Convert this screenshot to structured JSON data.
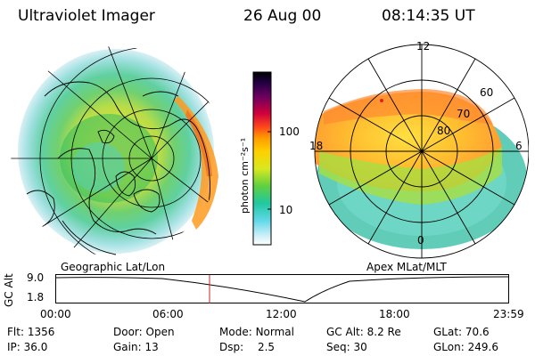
{
  "header": {
    "instrument": "Ultraviolet Imager",
    "date": "26 Aug 00",
    "time": "08:14:35 UT"
  },
  "colorbar": {
    "unit_label": "photon cm⁻²s⁻¹",
    "ticks": [
      "100",
      "10"
    ],
    "colors": [
      "#000000",
      "#1a0030",
      "#5a0050",
      "#c0004a",
      "#ff4020",
      "#ff9900",
      "#ffcc00",
      "#c8e020",
      "#40d040",
      "#20c8c0",
      "#a0e8f0",
      "#ffffff"
    ]
  },
  "geo_panel": {
    "label": "Geographic Lat/Lon"
  },
  "apex_panel": {
    "label": "Apex MLat/MLT",
    "mlt_labels": [
      "12",
      "18",
      "6",
      "0"
    ],
    "lat_labels": [
      "60",
      "70",
      "80"
    ]
  },
  "altitude_plot": {
    "ylabel": "GC Alt",
    "yticks": [
      "9.0",
      "1.8"
    ],
    "xticks": [
      "00:00",
      "06:00",
      "12:00",
      "18:00",
      "23:59"
    ],
    "marker_time": "08:14"
  },
  "info": {
    "row1": [
      {
        "label": "Flt:",
        "value": "1356"
      },
      {
        "label": "Door:",
        "value": "Open"
      },
      {
        "label": "Mode:",
        "value": "Normal"
      },
      {
        "label": "GC Alt:",
        "value": "8.2 Re"
      },
      {
        "label": "GLat:",
        "value": "70.6"
      }
    ],
    "row2": [
      {
        "label": "IP:",
        "value": "36.0"
      },
      {
        "label": "Gain:",
        "value": "13"
      },
      {
        "label": "Dsp:",
        "value": "2.5"
      },
      {
        "label": "Seq:",
        "value": "30"
      },
      {
        "label": "GLon:",
        "value": "249.6"
      }
    ]
  }
}
